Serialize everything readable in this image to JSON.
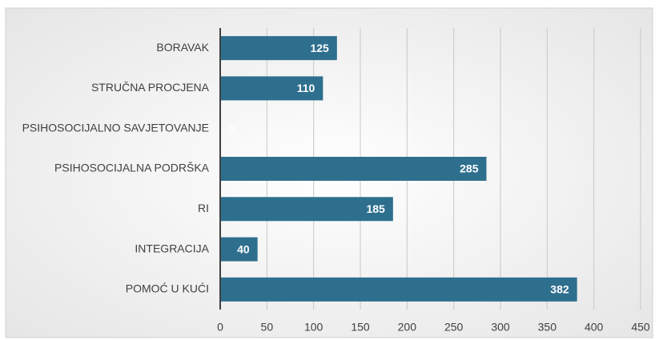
{
  "chart_data": {
    "type": "bar",
    "orientation": "horizontal",
    "categories": [
      "BORAVAK",
      "STRUČNA PROCJENA",
      "PSIHOSOCIJALNO SAVJETOVANJE",
      "PSIHOSOCIJALNA PODRŠKA",
      "RI",
      "INTEGRACIJA",
      "POMOĆ U KUĆI"
    ],
    "values": [
      125,
      110,
      0,
      285,
      185,
      40,
      382
    ],
    "color": "#2e6f8e",
    "xlim": [
      0,
      450
    ],
    "xticks": [
      0,
      50,
      100,
      150,
      200,
      250,
      300,
      350,
      400,
      450
    ],
    "grid": true
  }
}
